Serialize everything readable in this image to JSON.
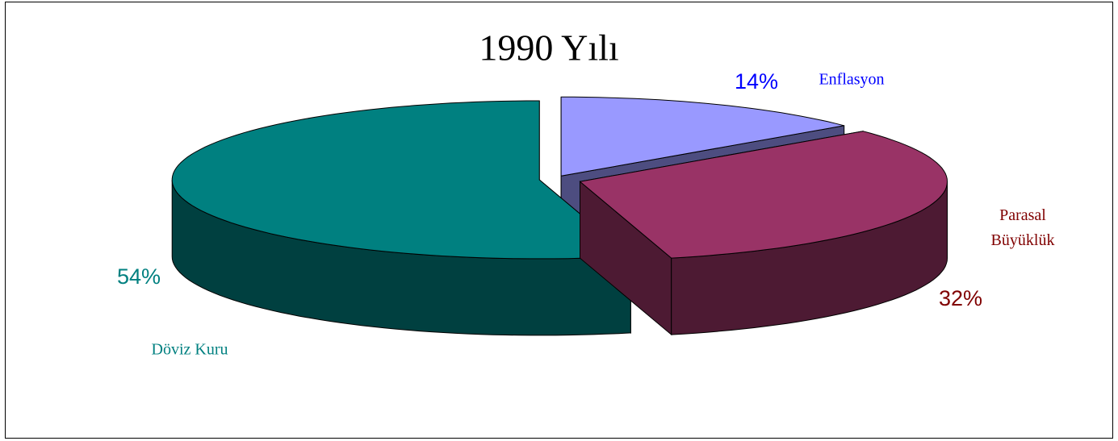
{
  "chart_data": {
    "type": "pie",
    "title": "1990 Yılı",
    "categories": [
      "Enflasyon",
      "Parasal Büyüklük",
      "Döviz Kuru"
    ],
    "values": [
      14,
      32,
      54
    ],
    "value_labels": [
      "14%",
      "32%",
      "54%"
    ],
    "colors": [
      "#9999ff",
      "#993366",
      "#008080"
    ],
    "label_colors": [
      "#0000ff",
      "#800000",
      "#008080"
    ]
  }
}
